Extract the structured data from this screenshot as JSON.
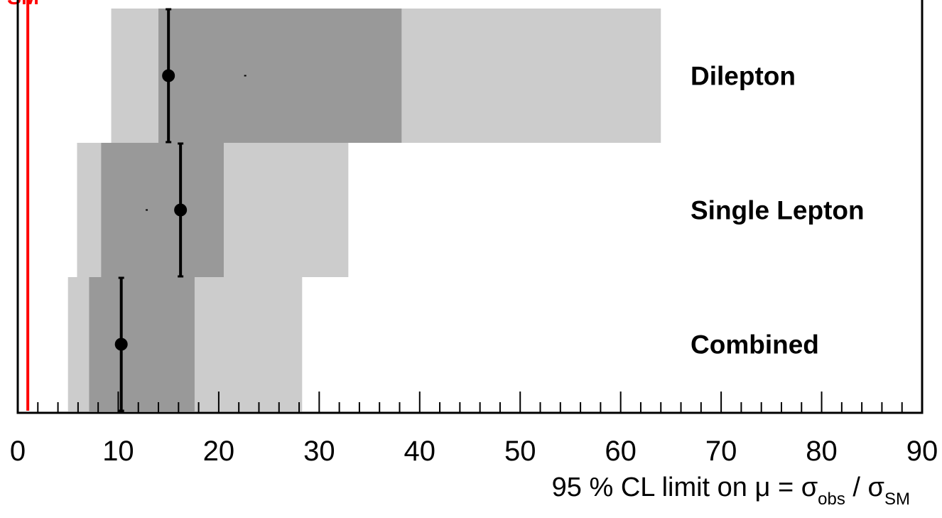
{
  "chart_data": {
    "type": "limit_summary",
    "x_axis": {
      "label_parts": [
        "95 % CL limit on μ = σ",
        "obs",
        " / σ",
        "SM"
      ],
      "range": [
        0,
        90
      ],
      "major_ticks": [
        0,
        10,
        20,
        30,
        40,
        50,
        60,
        70,
        80,
        90
      ],
      "minor_step": 2
    },
    "sm_reference": {
      "value": 1,
      "label": "SM",
      "color": "#ff0000"
    },
    "categories": [
      {
        "name": "Dilepton",
        "expected": 22.6,
        "one_sigma": [
          14.0,
          38.2
        ],
        "two_sigma": [
          9.3,
          64.0
        ],
        "observed": 15.0,
        "observed_err": [
          15.0,
          15.0
        ]
      },
      {
        "name": "Single Lepton",
        "expected": 12.8,
        "one_sigma": [
          8.3,
          20.5
        ],
        "two_sigma": [
          5.9,
          32.9
        ],
        "observed": 16.2,
        "observed_err": [
          16.2,
          16.2
        ]
      },
      {
        "name": "Combined",
        "expected": 10.6,
        "one_sigma": [
          7.1,
          17.6
        ],
        "two_sigma": [
          5.0,
          28.3
        ],
        "observed": 10.3,
        "observed_err": [
          10.3,
          10.3
        ]
      }
    ],
    "colors": {
      "one_sigma": "#999999",
      "two_sigma": "#cccccc",
      "observed": "#000000",
      "sm_line": "#ff0000"
    }
  }
}
